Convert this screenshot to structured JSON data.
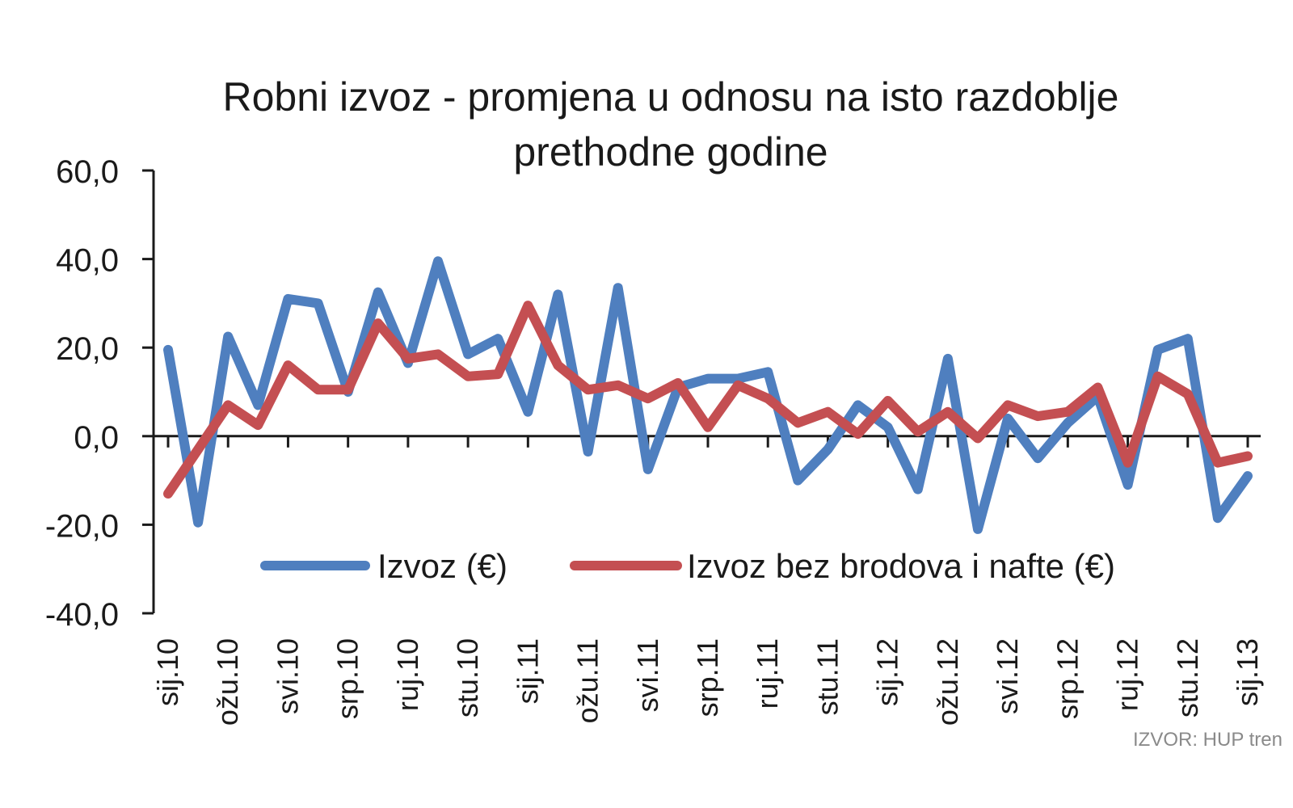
{
  "chart_data": {
    "type": "line",
    "title_line1": "Robni izvoz - promjena u odnosu na isto razdoblje",
    "title_line2": "prethodne godine",
    "xlabel": "",
    "ylabel": "",
    "ylim": [
      -40,
      60
    ],
    "y_ticks": [
      "60,0",
      "40,0",
      "20,0",
      "0,0",
      "-20,0",
      "-40,0"
    ],
    "y_tick_values": [
      60,
      40,
      20,
      0,
      -20,
      -40
    ],
    "x_tick_labels": [
      "sij.10",
      "ožu.10",
      "svi.10",
      "srp.10",
      "ruj.10",
      "stu.10",
      "sij.11",
      "ožu.11",
      "svi.11",
      "srp.11",
      "ruj.11",
      "stu.11",
      "sij.12",
      "ožu.12",
      "svi.12",
      "srp.12",
      "ruj.12",
      "stu.12",
      "sij.13"
    ],
    "legend_position": "bottom-center",
    "series": [
      {
        "name": "Izvoz (€)",
        "color": "#4f7fbf",
        "values": [
          19.5,
          -19.5,
          22.5,
          7.0,
          31.0,
          30.0,
          10.0,
          32.5,
          16.5,
          39.5,
          18.5,
          22.0,
          5.5,
          32.0,
          -3.5,
          33.5,
          -7.5,
          11.0,
          13.0,
          13.0,
          14.5,
          -10.0,
          -3.0,
          7.0,
          2.0,
          -12.0,
          17.5,
          -21.0,
          4.0,
          -5.0,
          3.0,
          9.0,
          -11.0,
          19.5,
          22.0,
          -18.5,
          -9.0
        ]
      },
      {
        "name": "Izvoz bez brodova i nafte (€)",
        "color": "#c44f52",
        "values": [
          -13.0,
          -3.0,
          7.0,
          2.5,
          16.0,
          10.5,
          10.5,
          25.5,
          17.5,
          18.5,
          13.5,
          14.0,
          29.5,
          16.0,
          10.5,
          11.5,
          8.5,
          12.0,
          2.0,
          11.5,
          8.5,
          3.0,
          5.5,
          0.5,
          8.0,
          1.0,
          5.5,
          -0.5,
          7.0,
          4.5,
          5.5,
          11.0,
          -6.0,
          13.5,
          9.5,
          -6.0,
          -4.5
        ]
      }
    ]
  },
  "source": "IZVOR: HUP tren"
}
